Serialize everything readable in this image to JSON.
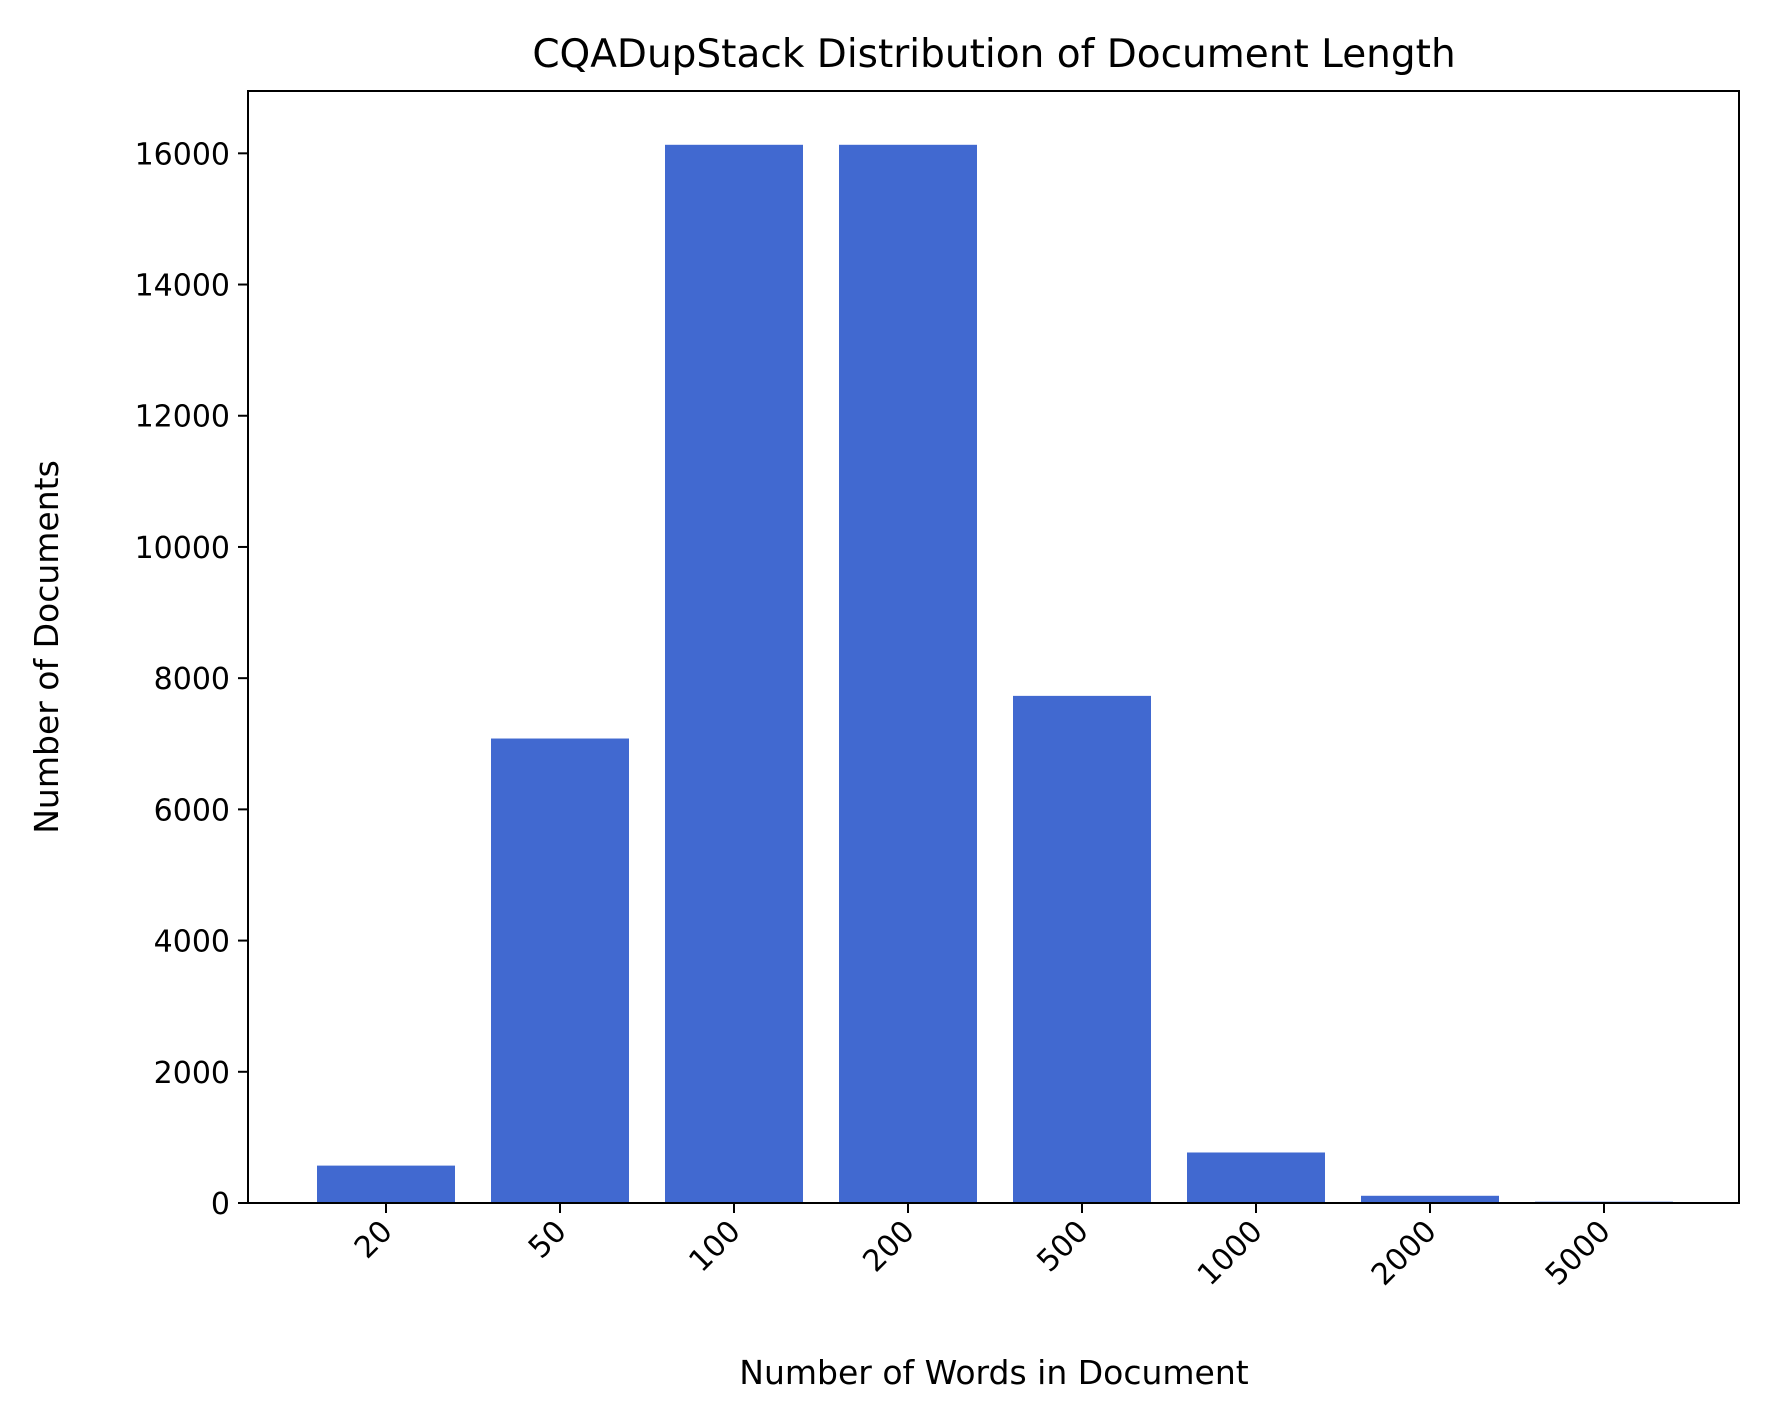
{
  "chart_data": {
    "type": "bar",
    "title": "CQADupStack Distribution of Document Length",
    "xlabel": "Number of Words in Document",
    "ylabel": "Number of Documents",
    "categories": [
      "20",
      "50",
      "100",
      "200",
      "500",
      "1000",
      "2000",
      "5000"
    ],
    "values": [
      570,
      7080,
      16130,
      16130,
      7730,
      770,
      110,
      20
    ],
    "ylim": [
      0,
      16950
    ],
    "yticks": [
      "0",
      "2000",
      "4000",
      "6000",
      "8000",
      "10000",
      "12000",
      "14000",
      "16000"
    ],
    "bar_color": "#4169d0",
    "grid": false,
    "legend": "none",
    "xtick_rotation": -45
  }
}
